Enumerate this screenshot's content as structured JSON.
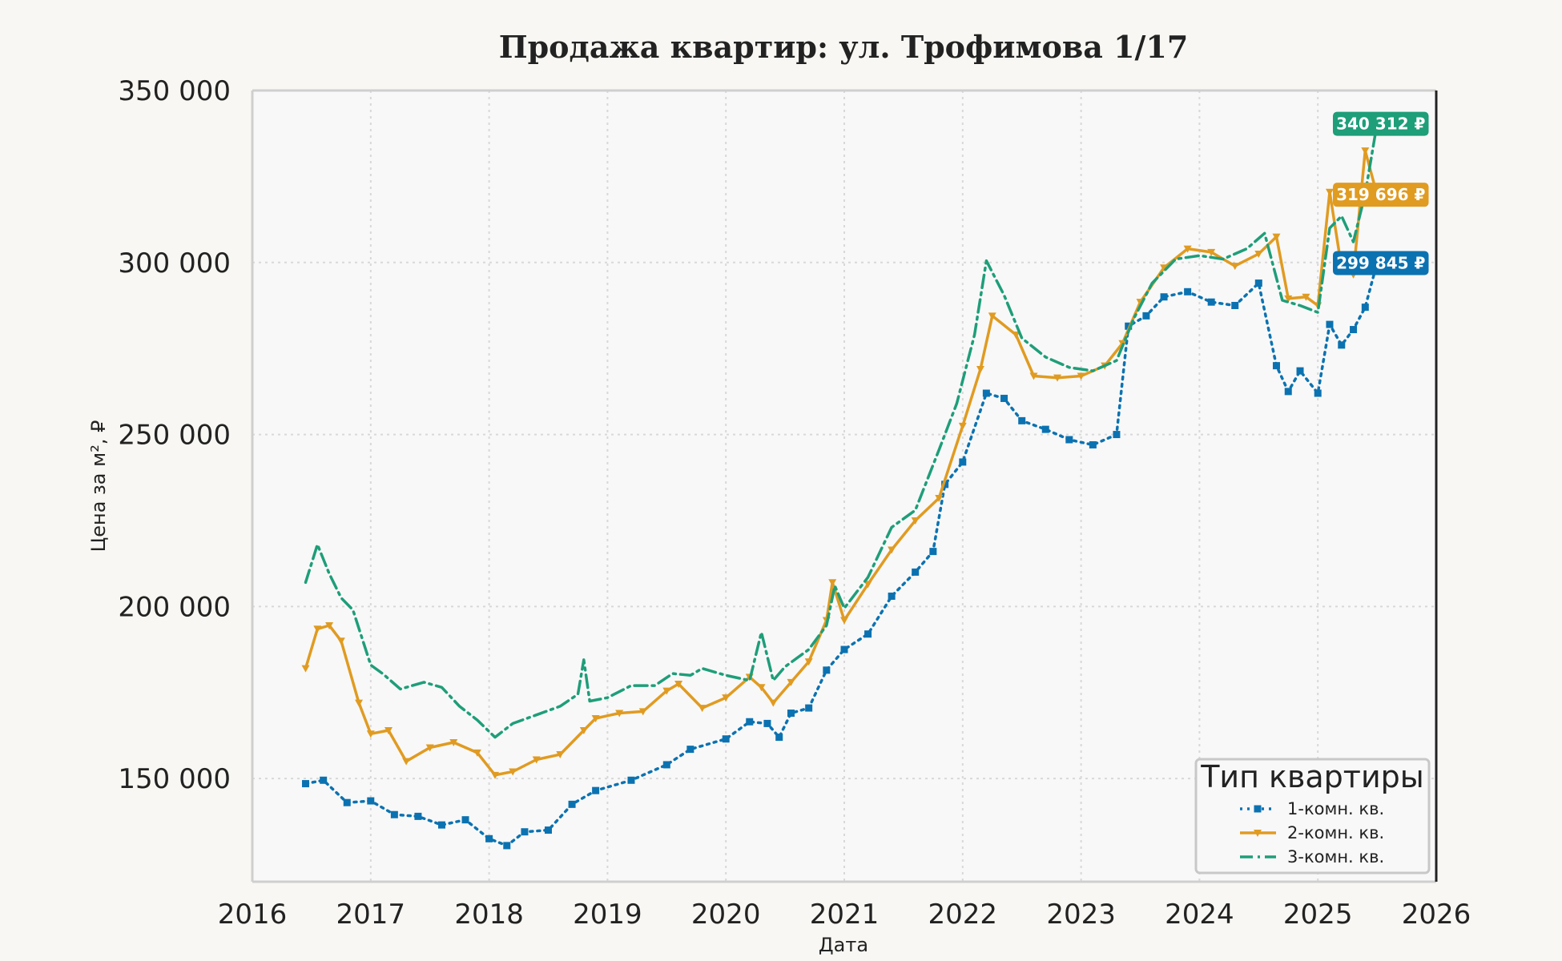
{
  "chart_data": {
    "type": "line",
    "title": "Продажа квартир: ул. Трофимова 1/17",
    "xlabel": "Дата",
    "ylabel": "Цена за м², ₽",
    "xlim": [
      2016,
      2026
    ],
    "ylim": [
      120000,
      350000
    ],
    "x_ticks": [
      "2016",
      "2017",
      "2018",
      "2019",
      "2020",
      "2021",
      "2022",
      "2023",
      "2024",
      "2025",
      "2026"
    ],
    "y_ticks": [
      "150 000",
      "200 000",
      "250 000",
      "300 000",
      "350 000"
    ],
    "grid": true,
    "legend": {
      "title": "Тип квартиры",
      "placement": "lower-right"
    },
    "series": [
      {
        "name": "1-комн. кв.",
        "color": "#0b72b1",
        "style": "dotted",
        "marker": "square",
        "last_label": "299 845 ₽",
        "x": [
          2016.45,
          2016.6,
          2016.8,
          2017.0,
          2017.2,
          2017.4,
          2017.6,
          2017.8,
          2018.0,
          2018.15,
          2018.3,
          2018.5,
          2018.7,
          2018.9,
          2019.2,
          2019.5,
          2019.7,
          2020.0,
          2020.2,
          2020.35,
          2020.45,
          2020.55,
          2020.7,
          2020.85,
          2021.0,
          2021.2,
          2021.4,
          2021.6,
          2021.75,
          2021.85,
          2022.0,
          2022.2,
          2022.35,
          2022.5,
          2022.7,
          2022.9,
          2023.1,
          2023.3,
          2023.4,
          2023.55,
          2023.7,
          2023.9,
          2024.1,
          2024.3,
          2024.5,
          2024.65,
          2024.75,
          2024.85,
          2025.0,
          2025.1,
          2025.2,
          2025.3,
          2025.4,
          2025.5
        ],
        "values": [
          148500,
          149500,
          143000,
          143500,
          139500,
          139000,
          136500,
          138000,
          132500,
          130500,
          134500,
          135000,
          142500,
          146500,
          149500,
          154000,
          158500,
          161500,
          166500,
          166000,
          162000,
          169000,
          170500,
          181500,
          187500,
          192000,
          203000,
          210000,
          216000,
          235500,
          242000,
          262000,
          260500,
          254000,
          251500,
          248500,
          247000,
          250000,
          281500,
          284500,
          290000,
          291500,
          288500,
          287500,
          294000,
          270000,
          262500,
          268500,
          262000,
          282000,
          276000,
          280500,
          287000,
          299845
        ]
      },
      {
        "name": "2-комн. кв.",
        "color": "#e09b21",
        "style": "solid",
        "marker": "triangle-down",
        "last_label": "319 696 ₽",
        "x": [
          2016.45,
          2016.55,
          2016.65,
          2016.75,
          2016.9,
          2017.0,
          2017.15,
          2017.3,
          2017.5,
          2017.7,
          2017.9,
          2018.05,
          2018.2,
          2018.4,
          2018.6,
          2018.8,
          2018.9,
          2019.1,
          2019.3,
          2019.5,
          2019.6,
          2019.8,
          2020.0,
          2020.2,
          2020.3,
          2020.4,
          2020.55,
          2020.7,
          2020.85,
          2020.9,
          2021.0,
          2021.2,
          2021.4,
          2021.6,
          2021.8,
          2022.0,
          2022.15,
          2022.25,
          2022.45,
          2022.6,
          2022.8,
          2023.0,
          2023.2,
          2023.35,
          2023.5,
          2023.7,
          2023.9,
          2024.1,
          2024.3,
          2024.5,
          2024.65,
          2024.75,
          2024.9,
          2025.0,
          2025.1,
          2025.2,
          2025.3,
          2025.4,
          2025.5
        ],
        "values": [
          182000,
          193500,
          194500,
          190000,
          172000,
          163000,
          164000,
          155000,
          159000,
          160500,
          157500,
          151000,
          152000,
          155500,
          157000,
          164000,
          167500,
          169000,
          169500,
          175500,
          177500,
          170500,
          173500,
          179500,
          176500,
          172000,
          178000,
          184000,
          196000,
          207000,
          196000,
          206500,
          216500,
          225000,
          231500,
          252500,
          269000,
          284500,
          279000,
          267000,
          266500,
          267000,
          270000,
          276500,
          288500,
          298500,
          304000,
          303000,
          299000,
          302500,
          307500,
          289500,
          290000,
          287500,
          320500,
          298500,
          296500,
          332500,
          319696
        ]
      },
      {
        "name": "3-комн. кв.",
        "color": "#1e9e79",
        "style": "dashdot",
        "marker": "none",
        "last_label": "340 312 ₽",
        "x": [
          2016.45,
          2016.55,
          2016.65,
          2016.75,
          2016.85,
          2017.0,
          2017.1,
          2017.25,
          2017.45,
          2017.6,
          2017.75,
          2017.9,
          2018.05,
          2018.2,
          2018.4,
          2018.6,
          2018.75,
          2018.8,
          2018.85,
          2019.0,
          2019.2,
          2019.4,
          2019.55,
          2019.7,
          2019.8,
          2020.0,
          2020.2,
          2020.3,
          2020.4,
          2020.5,
          2020.7,
          2020.85,
          2020.92,
          2021.0,
          2021.2,
          2021.4,
          2021.6,
          2021.8,
          2021.95,
          2022.1,
          2022.2,
          2022.35,
          2022.5,
          2022.7,
          2022.9,
          2023.1,
          2023.3,
          2023.45,
          2023.6,
          2023.8,
          2024.0,
          2024.2,
          2024.4,
          2024.55,
          2024.7,
          2024.85,
          2025.0,
          2025.1,
          2025.2,
          2025.3,
          2025.4,
          2025.5
        ],
        "values": [
          207000,
          218000,
          209500,
          202500,
          199000,
          183000,
          180500,
          176000,
          178000,
          176500,
          171000,
          167000,
          162000,
          166000,
          168500,
          171000,
          174500,
          184500,
          172500,
          173500,
          177000,
          177000,
          180500,
          180000,
          182000,
          180000,
          178500,
          192500,
          178500,
          182500,
          187500,
          194500,
          206000,
          199500,
          208500,
          223000,
          228000,
          245500,
          259000,
          279000,
          300500,
          290500,
          278000,
          272500,
          269500,
          268500,
          271500,
          284000,
          294000,
          301000,
          302000,
          301000,
          304000,
          308500,
          289000,
          287500,
          285500,
          310000,
          313500,
          306000,
          320000,
          340312
        ]
      }
    ]
  }
}
